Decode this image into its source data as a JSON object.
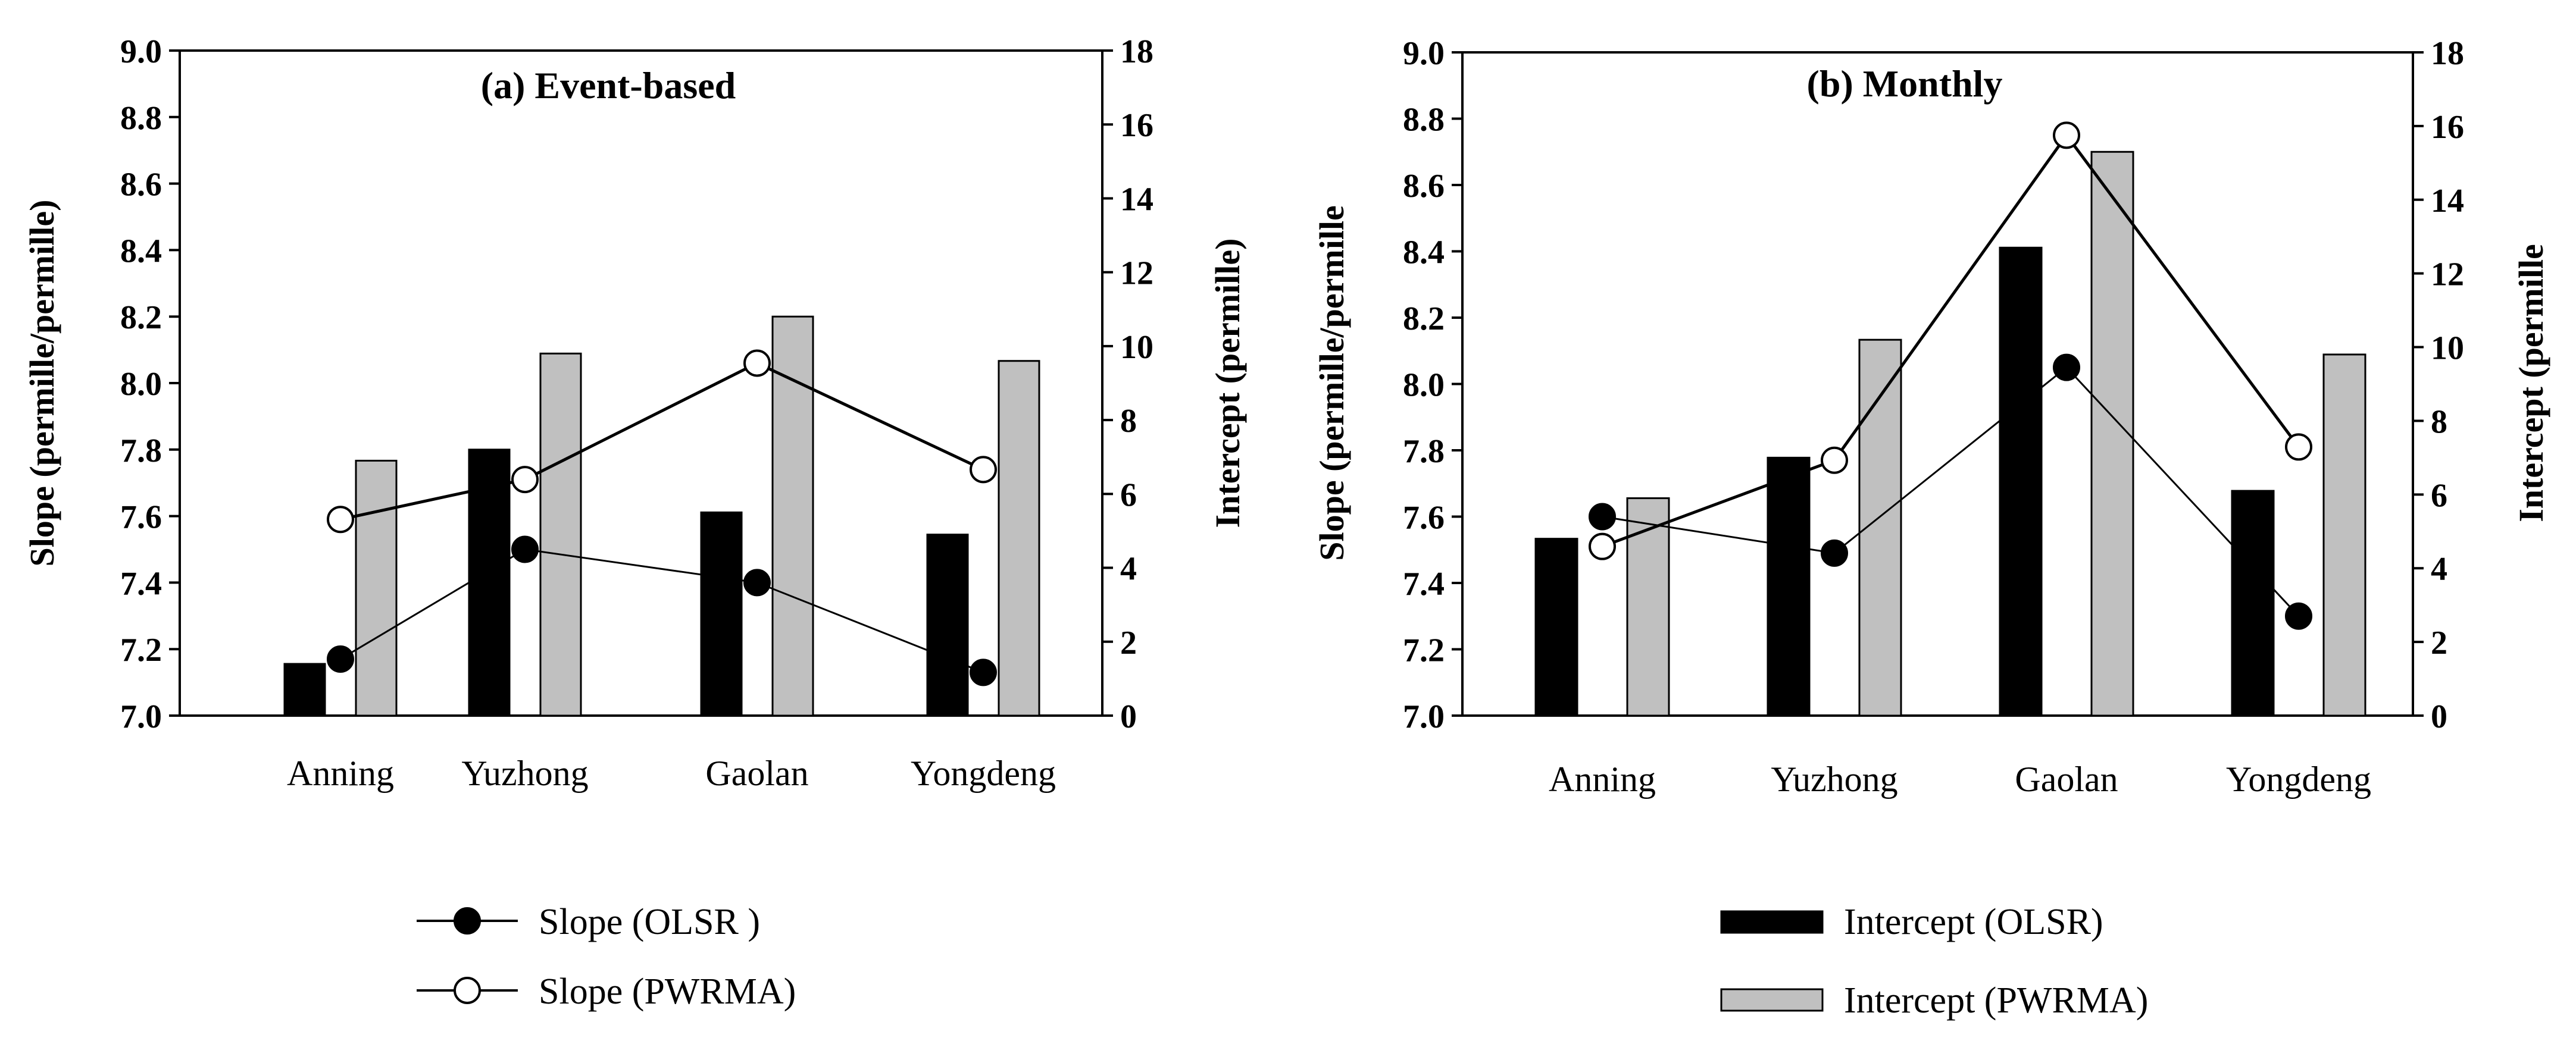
{
  "legend": {
    "slope_olsr": "Slope (OLSR )",
    "slope_pwrma": "Slope (PWRMA)",
    "intercept_olsr": "Intercept (OLSR)",
    "intercept_pwrma": "Intercept (PWRMA)"
  },
  "colors": {
    "olsr_bar": "#000000",
    "pwrma_bar": "#c0c0c0",
    "olsr_marker": "#000000",
    "pwrma_marker": "#ffffff",
    "line": "#000000"
  },
  "chart_data": [
    {
      "type": "bar+line",
      "title": "(a) Event-based",
      "categories": [
        "Anning",
        "Yuzhong",
        "Gaolan",
        "Yongdeng"
      ],
      "ylabel_left": "Slope (permille/permille)",
      "ylabel_right": "Intercept  (permille)",
      "ylim_left": [
        7.0,
        9.0
      ],
      "ylim_right": [
        0,
        18
      ],
      "yticks_left": [
        "7.0",
        "7.2",
        "7.4",
        "7.6",
        "7.8",
        "8.0",
        "8.2",
        "8.4",
        "8.6",
        "8.8",
        "9.0"
      ],
      "yticks_right": [
        "0",
        "2",
        "4",
        "6",
        "8",
        "10",
        "12",
        "14",
        "16",
        "18"
      ],
      "series": [
        {
          "name": "Intercept (OLSR)",
          "kind": "bar",
          "axis": "right",
          "values": [
            1.4,
            7.2,
            5.5,
            4.9
          ]
        },
        {
          "name": "Intercept (PWRMA)",
          "kind": "bar",
          "axis": "right",
          "values": [
            6.9,
            9.8,
            10.8,
            9.6
          ]
        },
        {
          "name": "Slope (OLSR )",
          "kind": "line",
          "axis": "left",
          "values": [
            7.17,
            7.5,
            7.4,
            7.13
          ]
        },
        {
          "name": "Slope (PWRMA)",
          "kind": "line",
          "axis": "left",
          "values": [
            7.59,
            7.71,
            8.06,
            7.74
          ]
        }
      ]
    },
    {
      "type": "bar+line",
      "title": "(b) Monthly",
      "categories": [
        "Anning",
        "Yuzhong",
        "Gaolan",
        "Yongdeng"
      ],
      "ylabel_left": "Slope (permille/permille",
      "ylabel_right": "Intercept  (permille",
      "ylim_left": [
        7.0,
        9.0
      ],
      "ylim_right": [
        0,
        18
      ],
      "yticks_left": [
        "7.0",
        "7.2",
        "7.4",
        "7.6",
        "7.8",
        "8.0",
        "8.2",
        "8.4",
        "8.6",
        "8.8",
        "9.0"
      ],
      "yticks_right": [
        "0",
        "2",
        "4",
        "6",
        "8",
        "10",
        "12",
        "14",
        "16",
        "18"
      ],
      "series": [
        {
          "name": "Intercept (OLSR)",
          "kind": "bar",
          "axis": "right",
          "values": [
            4.8,
            7.0,
            12.7,
            6.1
          ]
        },
        {
          "name": "Intercept (PWRMA)",
          "kind": "bar",
          "axis": "right",
          "values": [
            5.9,
            10.2,
            15.3,
            9.8
          ]
        },
        {
          "name": "Slope (OLSR )",
          "kind": "line",
          "axis": "left",
          "values": [
            7.6,
            7.49,
            8.05,
            7.3
          ]
        },
        {
          "name": "Slope (PWRMA)",
          "kind": "line",
          "axis": "left",
          "values": [
            7.51,
            7.77,
            8.75,
            7.81
          ]
        }
      ]
    }
  ]
}
